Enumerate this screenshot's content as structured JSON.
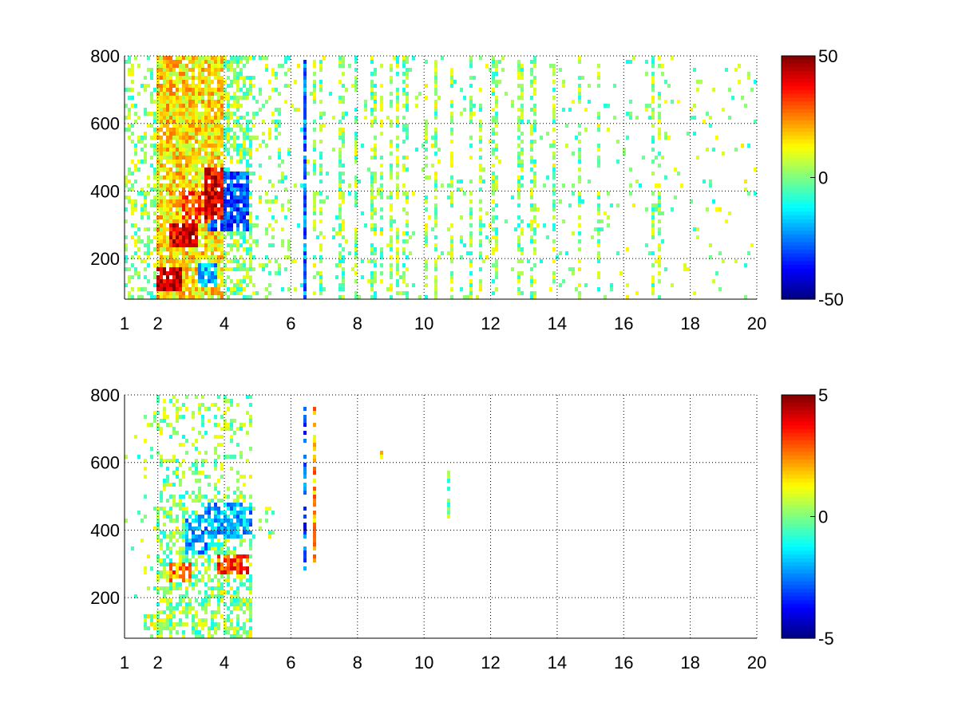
{
  "figure": {
    "background": "#ffffff"
  },
  "chart_data": [
    {
      "type": "heatmap",
      "title": "",
      "xlabel": "",
      "ylabel": "",
      "xlim": [
        1,
        20
      ],
      "ylim": [
        80,
        800
      ],
      "xticks": [
        1,
        2,
        4,
        6,
        8,
        10,
        12,
        14,
        16,
        18,
        20
      ],
      "xtick_labels": [
        "1",
        "2",
        "4",
        "6",
        "8",
        "10",
        "12",
        "14",
        "16",
        "18",
        "20"
      ],
      "yticks": [
        200,
        400,
        600,
        800
      ],
      "ytick_labels": [
        "200",
        "400",
        "600",
        "800"
      ],
      "grid": true,
      "grid_style": "dotted",
      "colormap": "jet",
      "clim": [
        -50,
        50
      ],
      "colorbar_ticks": [
        -50,
        0,
        50
      ],
      "colorbar_labels": [
        "-50",
        "0",
        "50"
      ],
      "features": [
        {
          "x": [
            2.0,
            2.7
          ],
          "y": [
            100,
            180
          ],
          "value": 45
        },
        {
          "x": [
            2.3,
            3.2
          ],
          "y": [
            230,
            300
          ],
          "value": 40
        },
        {
          "x": [
            2.7,
            3.6
          ],
          "y": [
            300,
            400
          ],
          "value": 30
        },
        {
          "x": [
            3.4,
            4.0
          ],
          "y": [
            320,
            470
          ],
          "value": 40
        },
        {
          "x": [
            3.5,
            4.7
          ],
          "y": [
            280,
            460
          ],
          "value": -30
        },
        {
          "x": [
            3.2,
            3.8
          ],
          "y": [
            120,
            190
          ],
          "value": -20
        },
        {
          "x": [
            2.0,
            4.0
          ],
          "y": [
            80,
            800
          ],
          "value": 15
        },
        {
          "x": [
            6.35,
            6.45
          ],
          "y": [
            80,
            800
          ],
          "value": -25
        }
      ]
    },
    {
      "type": "heatmap",
      "title": "",
      "xlabel": "",
      "ylabel": "",
      "xlim": [
        1,
        20
      ],
      "ylim": [
        80,
        800
      ],
      "xticks": [
        1,
        2,
        4,
        6,
        8,
        10,
        12,
        14,
        16,
        18,
        20
      ],
      "xtick_labels": [
        "1",
        "2",
        "4",
        "6",
        "8",
        "10",
        "12",
        "14",
        "16",
        "18",
        "20"
      ],
      "yticks": [
        200,
        400,
        600,
        800
      ],
      "ytick_labels": [
        "200",
        "400",
        "600",
        "800"
      ],
      "grid": true,
      "grid_style": "dotted",
      "colormap": "jet",
      "clim": [
        -5,
        5
      ],
      "colorbar_ticks": [
        -5,
        0,
        5
      ],
      "colorbar_labels": [
        "-5",
        "0",
        "5"
      ],
      "features": [
        {
          "x": [
            1.6,
            2.3
          ],
          "y": [
            100,
            150
          ],
          "value": 0.5
        },
        {
          "x": [
            2.3,
            3.0
          ],
          "y": [
            250,
            300
          ],
          "value": 2.5
        },
        {
          "x": [
            3.8,
            4.7
          ],
          "y": [
            270,
            330
          ],
          "value": 3
        },
        {
          "x": [
            2.8,
            3.6
          ],
          "y": [
            330,
            450
          ],
          "value": -2
        },
        {
          "x": [
            3.4,
            4.8
          ],
          "y": [
            380,
            480
          ],
          "value": -2
        },
        {
          "x": [
            6.4,
            6.5
          ],
          "y": [
            280,
            780
          ],
          "value": -3
        },
        {
          "x": [
            6.65,
            6.8
          ],
          "y": [
            300,
            780
          ],
          "value": 2
        },
        {
          "x": [
            8.7,
            8.8
          ],
          "y": [
            580,
            650
          ],
          "value": 2
        },
        {
          "x": [
            10.65,
            10.75
          ],
          "y": [
            440,
            570
          ],
          "value": 0
        }
      ]
    }
  ]
}
